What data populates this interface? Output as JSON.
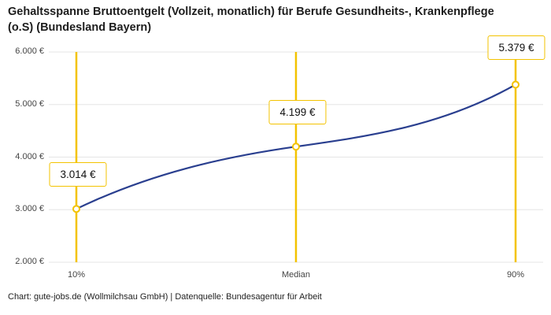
{
  "header": {
    "title": "Gehaltsspanne Bruttoentgelt (Vollzeit, monatlich) für Berufe Gesundheits-, Krankenpflege (o.S) (Bundesland Bayern)"
  },
  "footer": {
    "text": "Chart: gute-jobs.de (Wollmilchsau GmbH) | Datenquelle: Bundesagentur für Arbeit"
  },
  "colors": {
    "accent_yellow": "#F3C300",
    "line_blue": "#2A3F8F",
    "grid_gray": "#E5E5E5",
    "title_text": "#1D1D1D",
    "tick_text": "#444444"
  },
  "chart_data": {
    "type": "line",
    "title": "Gehaltsspanne Bruttoentgelt (Vollzeit, monatlich) für Berufe Gesundheits-, Krankenpflege (o.S) (Bundesland Bayern)",
    "categories": [
      "10%",
      "Median",
      "90%"
    ],
    "values": [
      3014,
      4199,
      5379
    ],
    "value_labels": [
      "3.014 €",
      "4.199 €",
      "5.379 €"
    ],
    "ylim": [
      2000,
      6000
    ],
    "y_ticks": [
      2000,
      3000,
      4000,
      5000,
      6000
    ],
    "y_tick_labels": [
      "2.000 €",
      "3.000 €",
      "4.000 €",
      "5.000 €",
      "6.000 €"
    ],
    "xlabel": "",
    "ylabel": "",
    "grid": true,
    "legend": "none",
    "annotations": "vertical yellow marker line at each percentile with framed value label; open circle marker at each data point"
  }
}
